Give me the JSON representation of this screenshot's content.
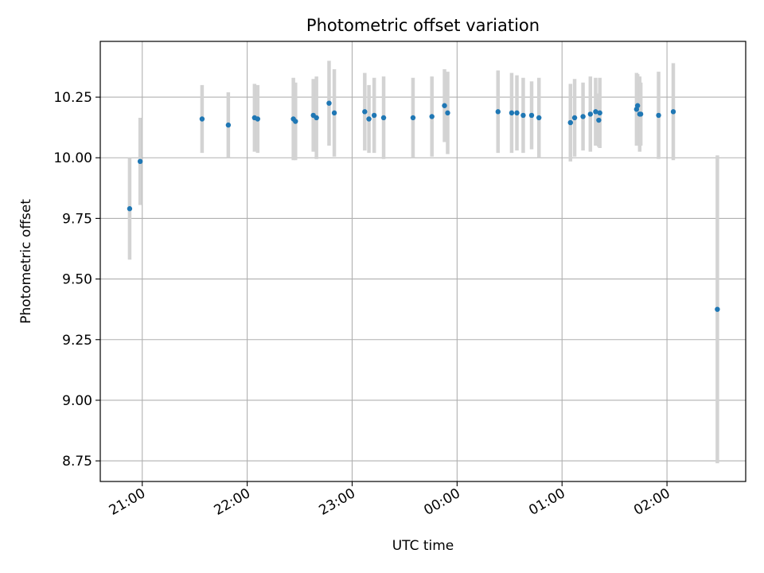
{
  "chart_data": {
    "type": "scatter",
    "title": "Photometric offset variation",
    "xlabel": "UTC time",
    "ylabel": "Photometric offset",
    "x_unit": "hours",
    "xlim": [
      20.6,
      26.75
    ],
    "ylim": [
      8.665,
      10.48
    ],
    "grid": true,
    "yticks": [
      8.75,
      9.0,
      9.25,
      9.5,
      9.75,
      10.0,
      10.25
    ],
    "ytick_labels": [
      "8.75",
      "9.00",
      "9.25",
      "9.50",
      "9.75",
      "10.00",
      "10.25"
    ],
    "xticks": [
      21,
      22,
      23,
      24,
      25,
      26
    ],
    "xtick_labels": [
      "21:00",
      "22:00",
      "23:00",
      "00:00",
      "01:00",
      "02:00"
    ],
    "colors": {
      "point": "#1f77b4",
      "errorbar": "#d3d3d3",
      "grid": "#b0b0b0"
    },
    "series": [
      {
        "points": [
          {
            "x": 20.88,
            "y": 9.79,
            "err": 0.21
          },
          {
            "x": 20.98,
            "y": 9.985,
            "err": 0.18
          },
          {
            "x": 21.57,
            "y": 10.16,
            "err": 0.14
          },
          {
            "x": 21.82,
            "y": 10.135,
            "err": 0.135
          },
          {
            "x": 22.07,
            "y": 10.165,
            "err": 0.14
          },
          {
            "x": 22.1,
            "y": 10.16,
            "err": 0.14
          },
          {
            "x": 22.44,
            "y": 10.16,
            "err": 0.17
          },
          {
            "x": 22.46,
            "y": 10.15,
            "err": 0.16
          },
          {
            "x": 22.63,
            "y": 10.175,
            "err": 0.15
          },
          {
            "x": 22.66,
            "y": 10.165,
            "err": 0.17
          },
          {
            "x": 22.78,
            "y": 10.225,
            "err": 0.175
          },
          {
            "x": 22.83,
            "y": 10.185,
            "err": 0.18
          },
          {
            "x": 23.12,
            "y": 10.19,
            "err": 0.16
          },
          {
            "x": 23.16,
            "y": 10.16,
            "err": 0.14
          },
          {
            "x": 23.21,
            "y": 10.175,
            "err": 0.155
          },
          {
            "x": 23.3,
            "y": 10.165,
            "err": 0.17
          },
          {
            "x": 23.58,
            "y": 10.165,
            "err": 0.165
          },
          {
            "x": 23.76,
            "y": 10.17,
            "err": 0.165
          },
          {
            "x": 23.88,
            "y": 10.215,
            "err": 0.15
          },
          {
            "x": 23.91,
            "y": 10.185,
            "err": 0.17
          },
          {
            "x": 24.39,
            "y": 10.19,
            "err": 0.17
          },
          {
            "x": 24.52,
            "y": 10.185,
            "err": 0.165
          },
          {
            "x": 24.57,
            "y": 10.185,
            "err": 0.155
          },
          {
            "x": 24.63,
            "y": 10.175,
            "err": 0.155
          },
          {
            "x": 24.71,
            "y": 10.175,
            "err": 0.14
          },
          {
            "x": 24.78,
            "y": 10.165,
            "err": 0.165
          },
          {
            "x": 25.08,
            "y": 10.145,
            "err": 0.16
          },
          {
            "x": 25.12,
            "y": 10.165,
            "err": 0.16
          },
          {
            "x": 25.2,
            "y": 10.17,
            "err": 0.14
          },
          {
            "x": 25.27,
            "y": 10.18,
            "err": 0.155
          },
          {
            "x": 25.32,
            "y": 10.19,
            "err": 0.14
          },
          {
            "x": 25.35,
            "y": 10.155,
            "err": 0.11
          },
          {
            "x": 25.36,
            "y": 10.185,
            "err": 0.145
          },
          {
            "x": 25.71,
            "y": 10.2,
            "err": 0.15
          },
          {
            "x": 25.72,
            "y": 10.215,
            "err": 0.13
          },
          {
            "x": 25.74,
            "y": 10.18,
            "err": 0.155
          },
          {
            "x": 25.75,
            "y": 10.18,
            "err": 0.13
          },
          {
            "x": 25.92,
            "y": 10.175,
            "err": 0.18
          },
          {
            "x": 26.06,
            "y": 10.19,
            "err": 0.2
          },
          {
            "x": 26.48,
            "y": 9.375,
            "err": 0.635
          }
        ]
      }
    ]
  }
}
